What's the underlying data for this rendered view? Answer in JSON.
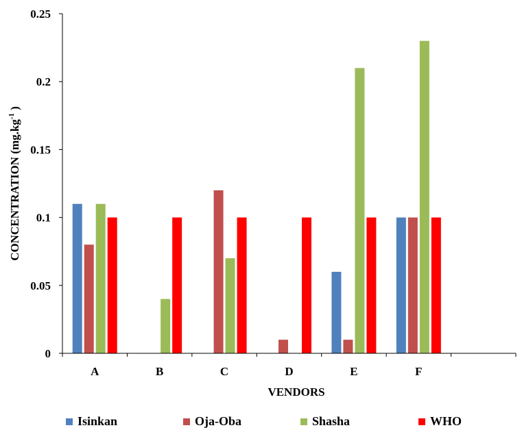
{
  "chart_data": {
    "type": "bar",
    "categories": [
      "A",
      "B",
      "C",
      "D",
      "E",
      "F",
      ""
    ],
    "series": [
      {
        "name": "Isinkan",
        "color": "#4f81bd",
        "values": [
          0.11,
          0,
          0,
          0,
          0.06,
          0.1,
          0
        ]
      },
      {
        "name": "Oja-Oba",
        "color": "#c0504d",
        "values": [
          0.08,
          0,
          0.12,
          0.01,
          0.01,
          0.1,
          0
        ]
      },
      {
        "name": "Shasha",
        "color": "#9bbb59",
        "values": [
          0.11,
          0.04,
          0.07,
          0,
          0.21,
          0.23,
          0
        ]
      },
      {
        "name": "WHO",
        "color": "#ff0000",
        "values": [
          0.1,
          0.1,
          0.1,
          0.1,
          0.1,
          0.1,
          0
        ]
      }
    ],
    "xlabel": "VENDORS",
    "ylabel": "CONCENTRATION (mg.kg",
    "ylabel_sup": "-1",
    "ylabel_tail": " )",
    "ylim": [
      0,
      0.25
    ],
    "yticks": [
      "0",
      "0.05",
      "0.1",
      "0.15",
      "0.2",
      "0.25"
    ],
    "grid": false,
    "legend_position": "bottom"
  }
}
